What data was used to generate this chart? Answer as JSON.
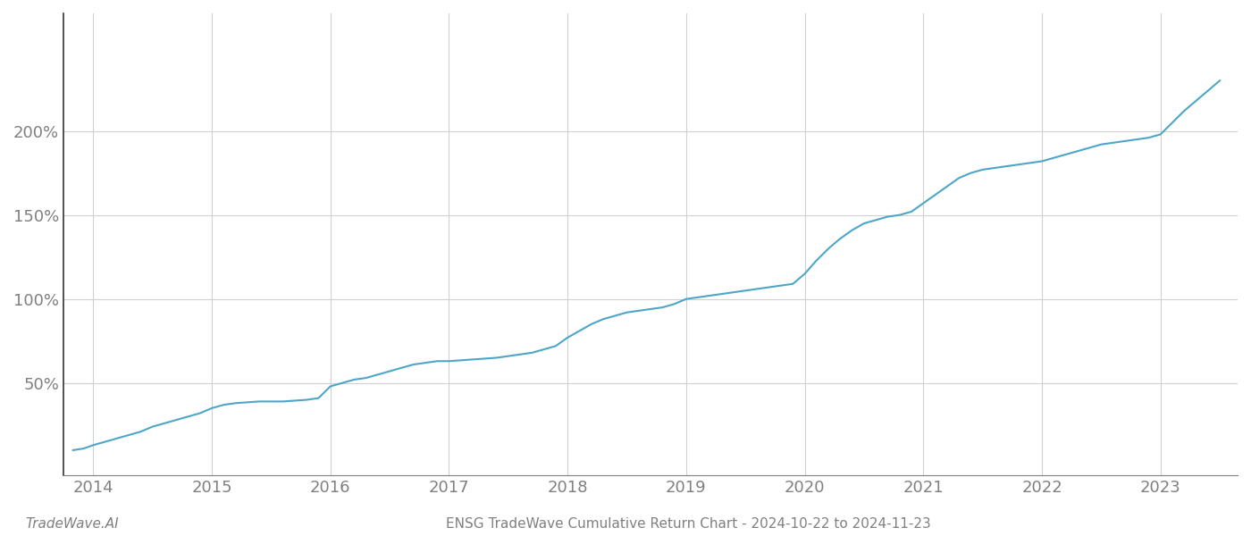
{
  "title": "ENSG TradeWave Cumulative Return Chart - 2024-10-22 to 2024-11-23",
  "watermark": "TradeWave.AI",
  "line_color": "#4da6c8",
  "background_color": "#ffffff",
  "grid_color": "#d0d0d0",
  "tick_color": "#808080",
  "spine_color": "#333333",
  "x_years": [
    2014,
    2015,
    2016,
    2017,
    2018,
    2019,
    2020,
    2021,
    2022,
    2023
  ],
  "x_values": [
    2013.83,
    2013.92,
    2014.0,
    2014.1,
    2014.2,
    2014.3,
    2014.4,
    2014.5,
    2014.6,
    2014.7,
    2014.8,
    2014.9,
    2015.0,
    2015.1,
    2015.2,
    2015.3,
    2015.4,
    2015.5,
    2015.6,
    2015.7,
    2015.8,
    2015.9,
    2016.0,
    2016.1,
    2016.2,
    2016.3,
    2016.4,
    2016.5,
    2016.6,
    2016.7,
    2016.8,
    2016.9,
    2017.0,
    2017.1,
    2017.2,
    2017.3,
    2017.4,
    2017.5,
    2017.6,
    2017.7,
    2017.8,
    2017.9,
    2018.0,
    2018.1,
    2018.2,
    2018.3,
    2018.4,
    2018.5,
    2018.6,
    2018.7,
    2018.8,
    2018.9,
    2019.0,
    2019.1,
    2019.2,
    2019.3,
    2019.4,
    2019.5,
    2019.6,
    2019.7,
    2019.8,
    2019.9,
    2020.0,
    2020.1,
    2020.2,
    2020.3,
    2020.4,
    2020.5,
    2020.6,
    2020.7,
    2020.8,
    2020.9,
    2021.0,
    2021.1,
    2021.2,
    2021.3,
    2021.4,
    2021.5,
    2021.6,
    2021.7,
    2021.8,
    2021.9,
    2022.0,
    2022.1,
    2022.2,
    2022.3,
    2022.4,
    2022.5,
    2022.6,
    2022.7,
    2022.8,
    2022.9,
    2023.0,
    2023.1,
    2023.2,
    2023.3,
    2023.4,
    2023.5
  ],
  "y_values": [
    10,
    11,
    13,
    15,
    17,
    19,
    21,
    24,
    26,
    28,
    30,
    32,
    35,
    37,
    38,
    38.5,
    39,
    39,
    39,
    39.5,
    40,
    41,
    48,
    50,
    52,
    53,
    55,
    57,
    59,
    61,
    62,
    63,
    63,
    63.5,
    64,
    64.5,
    65,
    66,
    67,
    68,
    70,
    72,
    77,
    81,
    85,
    88,
    90,
    92,
    93,
    94,
    95,
    97,
    100,
    101,
    102,
    103,
    104,
    105,
    106,
    107,
    108,
    109,
    115,
    123,
    130,
    136,
    141,
    145,
    147,
    149,
    150,
    152,
    157,
    162,
    167,
    172,
    175,
    177,
    178,
    179,
    180,
    181,
    182,
    184,
    186,
    188,
    190,
    192,
    193,
    194,
    195,
    196,
    198,
    205,
    212,
    218,
    224,
    230
  ],
  "yticks": [
    50,
    100,
    150,
    200
  ],
  "ylim": [
    -5,
    270
  ],
  "xlim": [
    2013.75,
    2023.65
  ],
  "title_fontsize": 11,
  "watermark_fontsize": 11,
  "tick_fontsize": 13
}
